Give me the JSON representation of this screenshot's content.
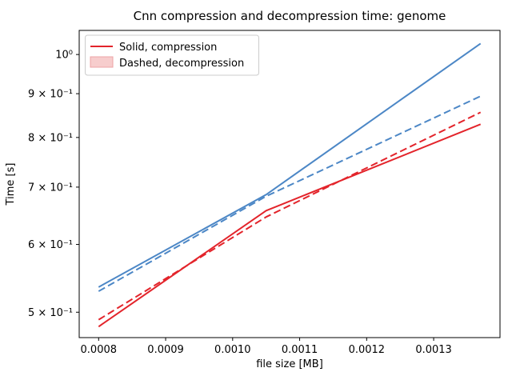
{
  "figure": {
    "title": "Cnn compression and decompression time: genome",
    "xlabel": "file size [MB]",
    "ylabel": "Time [s]"
  },
  "legend": {
    "position": "upper left",
    "items": [
      {
        "label": "Solid, compression",
        "swatch": "red-solid-line"
      },
      {
        "label": "Dashed, decompression",
        "swatch": "pink-filled-patch"
      }
    ]
  },
  "colors": {
    "red_line": "#e3242b",
    "blue_line": "#4c87c6",
    "patch_fill": "#f7cdcd",
    "patch_border": "#eda3a5",
    "spine": "#000000",
    "legend_border": "#cccccc"
  },
  "chart_data": {
    "type": "line",
    "title": "Cnn compression and decompression time: genome",
    "xlabel": "file size [MB]",
    "ylabel": "Time [s]",
    "x_scale": "linear",
    "y_scale": "log",
    "grid": false,
    "legend_position": "upper left",
    "x": [
      0.0008,
      0.00105,
      0.00137
    ],
    "series": [
      {
        "name": "compression-blue-solid",
        "role": "compression",
        "color": "#4c87c6",
        "style": "solid",
        "values": [
          0.535,
          0.686,
          1.03
        ]
      },
      {
        "name": "decompression-blue-dashed",
        "role": "decompression",
        "color": "#4c87c6",
        "style": "dashed",
        "values": [
          0.529,
          0.683,
          0.894
        ]
      },
      {
        "name": "compression-red-solid",
        "role": "compression",
        "color": "#e3242b",
        "style": "solid",
        "values": [
          0.481,
          0.657,
          0.829
        ]
      },
      {
        "name": "decompression-red-dashed",
        "role": "decompression",
        "color": "#e3242b",
        "style": "dashed",
        "values": [
          0.49,
          0.646,
          0.856
        ]
      }
    ],
    "xlim": [
      0.000771,
      0.001399
    ],
    "ylim": [
      0.467,
      1.067
    ],
    "x_ticks": [
      0.0008,
      0.0009,
      0.001,
      0.0011,
      0.0012,
      0.0013
    ],
    "x_tick_labels": [
      "0.0008",
      "0.0009",
      "0.0010",
      "0.0011",
      "0.0012",
      "0.0013"
    ],
    "y_ticks": [
      1.0,
      0.9,
      0.8,
      0.7,
      0.6,
      0.5
    ],
    "y_tick_labels": [
      "10⁰",
      "9 × 10⁻¹",
      "8 × 10⁻¹",
      "7 × 10⁻¹",
      "6 × 10⁻¹",
      "5 × 10⁻¹"
    ]
  }
}
